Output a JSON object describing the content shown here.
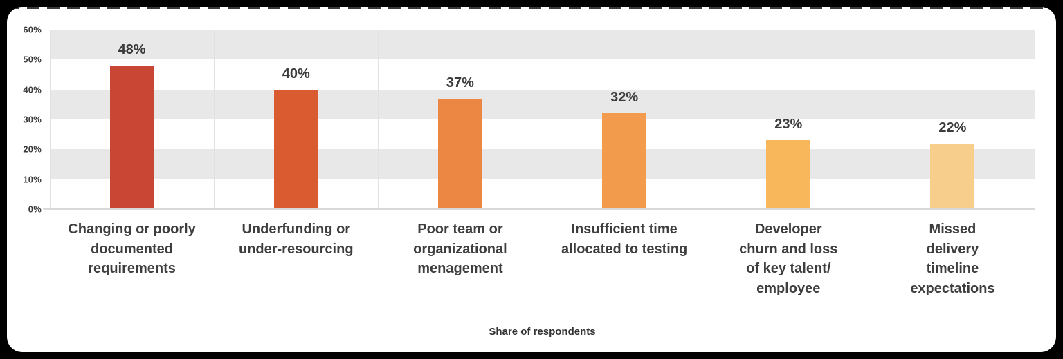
{
  "colors": {
    "frame_background": "#000000",
    "card_background": "#FFFFFF",
    "band_gray": "#E8E8E8",
    "gridline": "#E1E1E1",
    "axis_line": "#D9D9D9",
    "text": "#3B3B3B"
  },
  "chart_data": {
    "type": "bar",
    "title": "",
    "xlabel": "Share of respondents",
    "ylabel": "",
    "ylim": [
      0,
      60
    ],
    "yticks": [
      0,
      10,
      20,
      30,
      40,
      50,
      60
    ],
    "ytick_labels": [
      "0%",
      "10%",
      "20%",
      "30%",
      "40%",
      "50%",
      "60%"
    ],
    "grid": "alternating horizontal gray bands every 10%, vertical column separators",
    "legend": "none",
    "categories": [
      "Changing or poorly\ndocumented\nrequirements",
      "Underfunding or\nunder-resourcing",
      "Poor team or\norganizational\nmenagement",
      "Insufficient time\nallocated to testing",
      "Developer\nchurn and loss\nof key talent/\nemployee",
      "Missed\ndelivery\ntimeline\nexpectations"
    ],
    "values": [
      48,
      40,
      37,
      32,
      23,
      22
    ],
    "value_labels": [
      "48%",
      "40%",
      "37%",
      "32%",
      "23%",
      "22%"
    ],
    "bar_colors": [
      "#C94634",
      "#DA5B2F",
      "#EC8643",
      "#F29B4C",
      "#F8B75B",
      "#F8CE8D"
    ]
  }
}
